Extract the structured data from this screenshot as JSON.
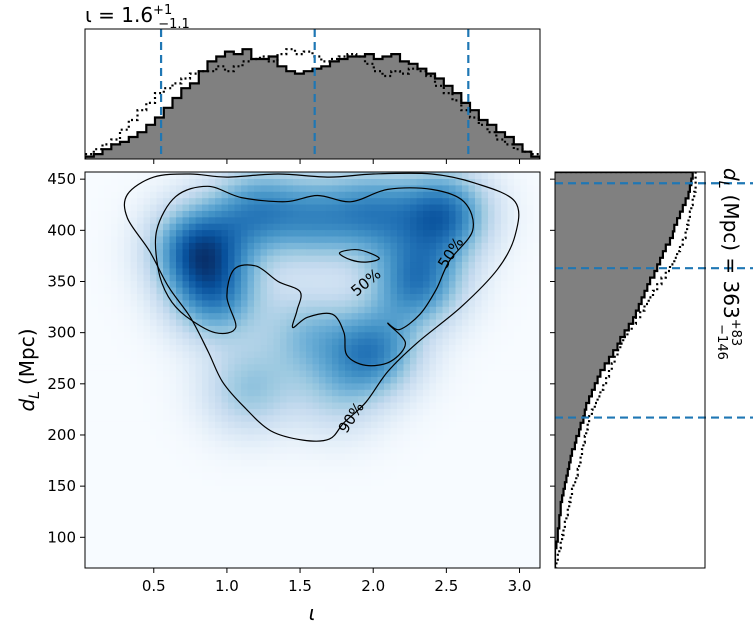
{
  "chart_data": [
    {
      "panel": "joint",
      "type": "heatmap",
      "xlabel": "ι",
      "ylabel_main": "d",
      "ylabel_sub": "L",
      "ylabel_unit": "(Mpc)",
      "xlim": [
        0.03,
        3.14
      ],
      "ylim": [
        70,
        457
      ],
      "xticks": [
        0.5,
        1.0,
        1.5,
        2.0,
        2.5,
        3.0
      ],
      "xtick_labels": [
        "0.5",
        "1.0",
        "1.5",
        "2.0",
        "2.5",
        "3.0"
      ],
      "yticks": [
        100,
        150,
        200,
        250,
        300,
        350,
        400,
        450
      ],
      "ytick_labels": [
        "100",
        "150",
        "200",
        "250",
        "300",
        "350",
        "400",
        "450"
      ],
      "colormap": "Blues",
      "density_peaks": [
        {
          "x": 0.8,
          "y": 383,
          "weight": 1.0
        },
        {
          "x": 0.92,
          "y": 336,
          "weight": 0.75
        },
        {
          "x": 1.2,
          "y": 420,
          "weight": 0.7
        },
        {
          "x": 1.6,
          "y": 412,
          "weight": 0.6
        },
        {
          "x": 2.0,
          "y": 418,
          "weight": 0.7
        },
        {
          "x": 2.3,
          "y": 350,
          "weight": 0.85
        },
        {
          "x": 2.48,
          "y": 416,
          "weight": 0.95
        },
        {
          "x": 2.0,
          "y": 282,
          "weight": 0.8
        },
        {
          "x": 1.15,
          "y": 245,
          "weight": 0.45
        },
        {
          "x": 1.55,
          "y": 300,
          "weight": 0.45
        },
        {
          "x": 1.75,
          "y": 240,
          "weight": 0.3
        }
      ],
      "contours": [
        {
          "level": "90%",
          "label": "90%",
          "label_at": {
            "x": 1.85,
            "y": 217,
            "angle": -57
          },
          "points": [
            [
              1.0,
              452
            ],
            [
              1.35,
              455
            ],
            [
              1.7,
              452
            ],
            [
              2.0,
              455
            ],
            [
              2.4,
              455
            ],
            [
              2.7,
              446
            ],
            [
              2.97,
              428
            ],
            [
              2.97,
              395
            ],
            [
              2.85,
              362
            ],
            [
              2.6,
              325
            ],
            [
              2.3,
              290
            ],
            [
              2.1,
              262
            ],
            [
              1.95,
              232
            ],
            [
              1.8,
              212
            ],
            [
              1.7,
              196
            ],
            [
              1.52,
              195
            ],
            [
              1.3,
              204
            ],
            [
              1.12,
              227
            ],
            [
              0.97,
              252
            ],
            [
              0.87,
              282
            ],
            [
              0.75,
              315
            ],
            [
              0.6,
              345
            ],
            [
              0.47,
              380
            ],
            [
              0.32,
              412
            ],
            [
              0.32,
              435
            ],
            [
              0.5,
              452
            ],
            [
              0.75,
              455
            ]
          ]
        },
        {
          "level": "50%",
          "label": "50%",
          "label_at": {
            "x": 2.53,
            "y": 378,
            "angle": -57
          },
          "points": [
            [
              0.65,
              433
            ],
            [
              0.87,
              443
            ],
            [
              1.1,
              432
            ],
            [
              1.4,
              428
            ],
            [
              1.62,
              434
            ],
            [
              1.85,
              428
            ],
            [
              2.1,
              440
            ],
            [
              2.4,
              440
            ],
            [
              2.62,
              428
            ],
            [
              2.68,
              400
            ],
            [
              2.52,
              370
            ],
            [
              2.43,
              342
            ],
            [
              2.32,
              318
            ],
            [
              2.18,
              303
            ],
            [
              2.1,
              309
            ],
            [
              2.22,
              290
            ],
            [
              2.12,
              272
            ],
            [
              1.95,
              268
            ],
            [
              1.82,
              278
            ],
            [
              1.8,
              300
            ],
            [
              1.72,
              318
            ],
            [
              1.55,
              315
            ],
            [
              1.45,
              305
            ],
            [
              1.48,
              322
            ],
            [
              1.5,
              340
            ],
            [
              1.35,
              350
            ],
            [
              1.2,
              365
            ],
            [
              1.05,
              362
            ],
            [
              1.0,
              335
            ],
            [
              1.06,
              305
            ],
            [
              0.92,
              300
            ],
            [
              0.72,
              316
            ],
            [
              0.6,
              335
            ],
            [
              0.53,
              362
            ],
            [
              0.52,
              400
            ]
          ]
        },
        {
          "level": "50%",
          "label": "50%",
          "label_at": {
            "x": 1.95,
            "y": 349,
            "angle": -40
          },
          "points": [
            [
              1.77,
              378
            ],
            [
              1.9,
              381
            ],
            [
              2.04,
              373
            ],
            [
              1.96,
              369
            ],
            [
              1.85,
              371
            ]
          ]
        }
      ]
    },
    {
      "panel": "top-marginal",
      "type": "histogram",
      "title_main": "ι = 1.6",
      "title_sup": "+1",
      "title_sub": "−1.1",
      "median": 1.6,
      "lower": 0.55,
      "upper": 2.65,
      "bin_edges": [
        0.03,
        3.14
      ],
      "series": [
        {
          "name": "",
          "style": "solid",
          "fill": "#808080",
          "values": [
            2,
            4,
            8,
            12,
            14,
            18,
            22,
            28,
            34,
            42,
            50,
            58,
            62,
            72,
            80,
            84,
            88,
            86,
            90,
            82,
            82,
            84,
            76,
            72,
            70,
            72,
            74,
            76,
            80,
            82,
            84,
            84,
            86,
            82,
            84,
            86,
            80,
            78,
            74,
            70,
            66,
            60,
            54,
            46,
            40,
            32,
            28,
            22,
            18,
            12,
            6,
            2
          ]
        },
        {
          "name": "",
          "style": "dotted",
          "fill": "none",
          "values": [
            4,
            8,
            12,
            16,
            24,
            32,
            40,
            46,
            54,
            58,
            62,
            66,
            70,
            72,
            72,
            76,
            72,
            76,
            80,
            82,
            84,
            80,
            86,
            90,
            86,
            88,
            84,
            80,
            82,
            84,
            86,
            84,
            78,
            72,
            68,
            72,
            70,
            74,
            72,
            68,
            60,
            54,
            48,
            40,
            34,
            28,
            22,
            16,
            12,
            8,
            6,
            4
          ]
        }
      ],
      "hist_max": 100
    },
    {
      "panel": "right-marginal",
      "type": "histogram",
      "orientation": "horizontal",
      "title_main": "d",
      "title_sub_L": "L",
      "title_rest": "(Mpc) = 363",
      "title_sup": "+83",
      "title_sub": "−146",
      "median": 363,
      "lower": 217,
      "upper": 446,
      "bin_edges": [
        70,
        457
      ],
      "series": [
        {
          "name": "",
          "style": "solid",
          "fill": "#808080",
          "values": [
            0,
            0,
            0,
            1,
            2,
            2,
            3,
            3,
            4,
            4,
            5,
            6,
            7,
            8,
            9,
            10,
            11,
            12,
            14,
            15,
            17,
            18,
            20,
            21,
            22,
            24,
            26,
            28,
            30,
            32,
            35,
            38,
            41,
            44,
            46,
            49,
            52,
            55,
            57,
            59,
            61,
            63,
            65,
            67,
            70,
            72,
            74,
            76,
            78,
            81,
            83,
            84,
            86,
            88,
            90,
            92,
            94,
            95,
            96,
            97
          ]
        },
        {
          "name": "",
          "style": "dotted",
          "fill": "none",
          "values": [
            1,
            2,
            3,
            4,
            5,
            6,
            7,
            8,
            9,
            10,
            11,
            12,
            13,
            15,
            16,
            17,
            18,
            19,
            20,
            21,
            22,
            23,
            24,
            26,
            28,
            30,
            32,
            34,
            36,
            38,
            40,
            42,
            44,
            46,
            48,
            51,
            54,
            57,
            60,
            63,
            66,
            69,
            72,
            75,
            78,
            81,
            84,
            86,
            88,
            90,
            92,
            93,
            94,
            95,
            96,
            97,
            98,
            99,
            99,
            99
          ]
        }
      ],
      "hist_max": 100
    }
  ]
}
